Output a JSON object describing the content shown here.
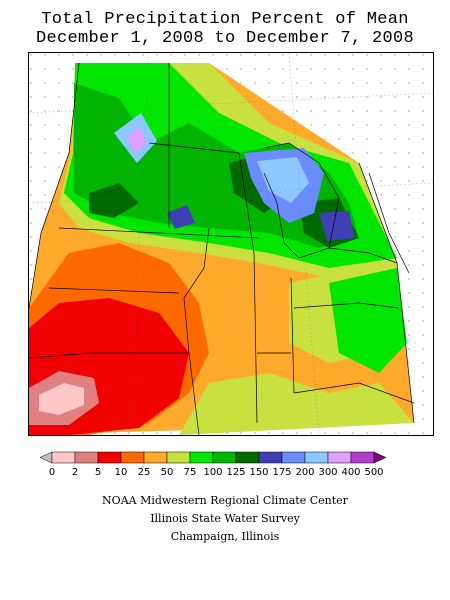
{
  "title": {
    "line1": "Total Precipitation Percent of Mean",
    "line2": "December 1, 2008 to December 7, 2008"
  },
  "legend": {
    "labels": [
      "0",
      "2",
      "5",
      "10",
      "25",
      "50",
      "75",
      "100",
      "125",
      "150",
      "175",
      "200",
      "300",
      "400",
      "500"
    ],
    "colors": [
      "#c0c0c0",
      "#ffc8c8",
      "#e08080",
      "#f00000",
      "#ff6a00",
      "#ffaa2c",
      "#c8e040",
      "#00e600",
      "#00b400",
      "#006a00",
      "#4040b4",
      "#6a8cff",
      "#8cc8ff",
      "#e0a0ff",
      "#b040c8",
      "#800080"
    ]
  },
  "credits": {
    "line1": "NOAA Midwestern Regional Climate Center",
    "line2": "Illinois State Water Survey",
    "line3": "Champaign, Illinois"
  },
  "map": {
    "region": "Midwestern United States",
    "palette": {
      "red": "#f00000",
      "orange_red": "#ff6a00",
      "orange": "#ffaa2c",
      "yellow_green": "#c8e040",
      "green": "#00e600",
      "dark_green": "#00b400",
      "forest": "#006a00",
      "blue": "#4040b4",
      "light_blue": "#6a8cff",
      "sky": "#8cc8ff",
      "pink": "#e08080",
      "light_pink": "#ffc8c8",
      "violet": "#e0a0ff"
    }
  }
}
